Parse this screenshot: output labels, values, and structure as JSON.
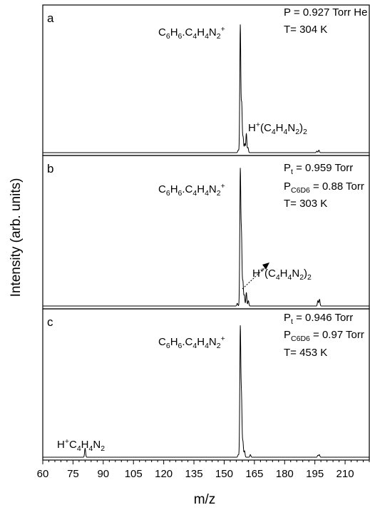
{
  "chart_data": {
    "type": "line",
    "xlabel": "m/z",
    "ylabel": "Intensity (arb. units)",
    "xlim": [
      60,
      222
    ],
    "x_ticks": [
      "60",
      "75",
      "90",
      "105",
      "120",
      "135",
      "150",
      "165",
      "180",
      "195",
      "210"
    ],
    "panels": [
      {
        "label": "a",
        "conditions": [
          {
            "segments": [
              {
                "t": "P = 0.927 Torr  He"
              }
            ]
          },
          {
            "segments": [
              {
                "t": "T= 304 K"
              }
            ]
          }
        ],
        "peak_labels": [
          {
            "segments": [
              {
                "t": "C"
              },
              {
                "t": "6",
                "s": "sub"
              },
              {
                "t": "H"
              },
              {
                "t": "6",
                "s": "sub"
              },
              {
                "t": ".C"
              },
              {
                "t": "4",
                "s": "sub"
              },
              {
                "t": "H"
              },
              {
                "t": "4",
                "s": "sub"
              },
              {
                "t": "N"
              },
              {
                "t": "2",
                "s": "sub"
              },
              {
                "t": "+",
                "s": "sup"
              }
            ]
          },
          {
            "segments": [
              {
                "t": "H"
              },
              {
                "t": "+",
                "s": "sup"
              },
              {
                "t": "(C"
              },
              {
                "t": "4",
                "s": "sub"
              },
              {
                "t": "H"
              },
              {
                "t": "4",
                "s": "sub"
              },
              {
                "t": "N"
              },
              {
                "t": "2",
                "s": "sub"
              },
              {
                "t": ")"
              },
              {
                "t": "2",
                "s": "sub"
              }
            ]
          }
        ],
        "peaks": [
          {
            "mz": 157.0,
            "height": 0.02
          },
          {
            "mz": 158.0,
            "height": 1.0
          },
          {
            "mz": 158.7,
            "height": 0.38
          },
          {
            "mz": 159.4,
            "height": 0.12
          },
          {
            "mz": 160.2,
            "height": 0.07
          },
          {
            "mz": 161.0,
            "height": 0.15
          },
          {
            "mz": 161.8,
            "height": 0.04
          },
          {
            "mz": 196.0,
            "height": 0.012
          },
          {
            "mz": 197.0,
            "height": 0.02
          }
        ]
      },
      {
        "label": "b",
        "conditions": [
          {
            "segments": [
              {
                "t": "P"
              },
              {
                "t": "t",
                "s": "sub"
              },
              {
                "t": " = 0.959 Torr"
              }
            ]
          },
          {
            "segments": [
              {
                "t": "P"
              },
              {
                "t": "C6D6",
                "s": "sub"
              },
              {
                "t": " = 0.88 Torr"
              }
            ]
          },
          {
            "segments": [
              {
                "t": "T= 303 K"
              }
            ]
          }
        ],
        "peak_labels": [
          {
            "segments": [
              {
                "t": "C"
              },
              {
                "t": "6",
                "s": "sub"
              },
              {
                "t": "H"
              },
              {
                "t": "6",
                "s": "sub"
              },
              {
                "t": ".C"
              },
              {
                "t": "4",
                "s": "sub"
              },
              {
                "t": "H"
              },
              {
                "t": "4",
                "s": "sub"
              },
              {
                "t": "N"
              },
              {
                "t": "2",
                "s": "sub"
              },
              {
                "t": "+",
                "s": "sup"
              }
            ]
          },
          {
            "segments": [
              {
                "t": "H"
              },
              {
                "t": "+",
                "s": "sup"
              },
              {
                "t": "(C"
              },
              {
                "t": "4",
                "s": "sub"
              },
              {
                "t": "H"
              },
              {
                "t": "4",
                "s": "sub"
              },
              {
                "t": "N"
              },
              {
                "t": "2",
                "s": "sub"
              },
              {
                "t": ")"
              },
              {
                "t": "2",
                "s": "sub"
              }
            ]
          }
        ],
        "peaks": [
          {
            "mz": 156.5,
            "height": 0.02
          },
          {
            "mz": 158.0,
            "height": 1.0
          },
          {
            "mz": 158.6,
            "height": 0.5
          },
          {
            "mz": 159.3,
            "height": 0.18
          },
          {
            "mz": 160.0,
            "height": 0.08
          },
          {
            "mz": 161.0,
            "height": 0.1
          },
          {
            "mz": 162.0,
            "height": 0.04
          },
          {
            "mz": 196.5,
            "height": 0.04
          },
          {
            "mz": 197.3,
            "height": 0.05
          }
        ]
      },
      {
        "label": "c",
        "conditions": [
          {
            "segments": [
              {
                "t": "P"
              },
              {
                "t": "t",
                "s": "sub"
              },
              {
                "t": " = 0.946 Torr"
              }
            ]
          },
          {
            "segments": [
              {
                "t": "P"
              },
              {
                "t": "C6D6",
                "s": "sub"
              },
              {
                "t": " = 0.97 Torr"
              }
            ]
          },
          {
            "segments": [
              {
                "t": "T= 453 K"
              }
            ]
          }
        ],
        "peak_labels": [
          {
            "segments": [
              {
                "t": "C"
              },
              {
                "t": "6",
                "s": "sub"
              },
              {
                "t": "H"
              },
              {
                "t": "6",
                "s": "sub"
              },
              {
                "t": ".C"
              },
              {
                "t": "4",
                "s": "sub"
              },
              {
                "t": "H"
              },
              {
                "t": "4",
                "s": "sub"
              },
              {
                "t": "N"
              },
              {
                "t": "2",
                "s": "sub"
              },
              {
                "t": "+",
                "s": "sup"
              }
            ]
          },
          {
            "segments": [
              {
                "t": "H"
              },
              {
                "t": "+",
                "s": "sup"
              },
              {
                "t": "C"
              },
              {
                "t": "4",
                "s": "sub"
              },
              {
                "t": "H"
              },
              {
                "t": "4",
                "s": "sub"
              },
              {
                "t": "N"
              },
              {
                "t": "2",
                "s": "sub"
              }
            ]
          }
        ],
        "peaks": [
          {
            "mz": 81.0,
            "height": 0.07
          },
          {
            "mz": 157.0,
            "height": 0.02
          },
          {
            "mz": 158.0,
            "height": 1.0
          },
          {
            "mz": 158.6,
            "height": 0.45
          },
          {
            "mz": 159.3,
            "height": 0.12
          },
          {
            "mz": 160.1,
            "height": 0.05
          },
          {
            "mz": 163.0,
            "height": 0.02
          },
          {
            "mz": 196.5,
            "height": 0.015
          },
          {
            "mz": 197.2,
            "height": 0.02
          }
        ]
      }
    ]
  }
}
